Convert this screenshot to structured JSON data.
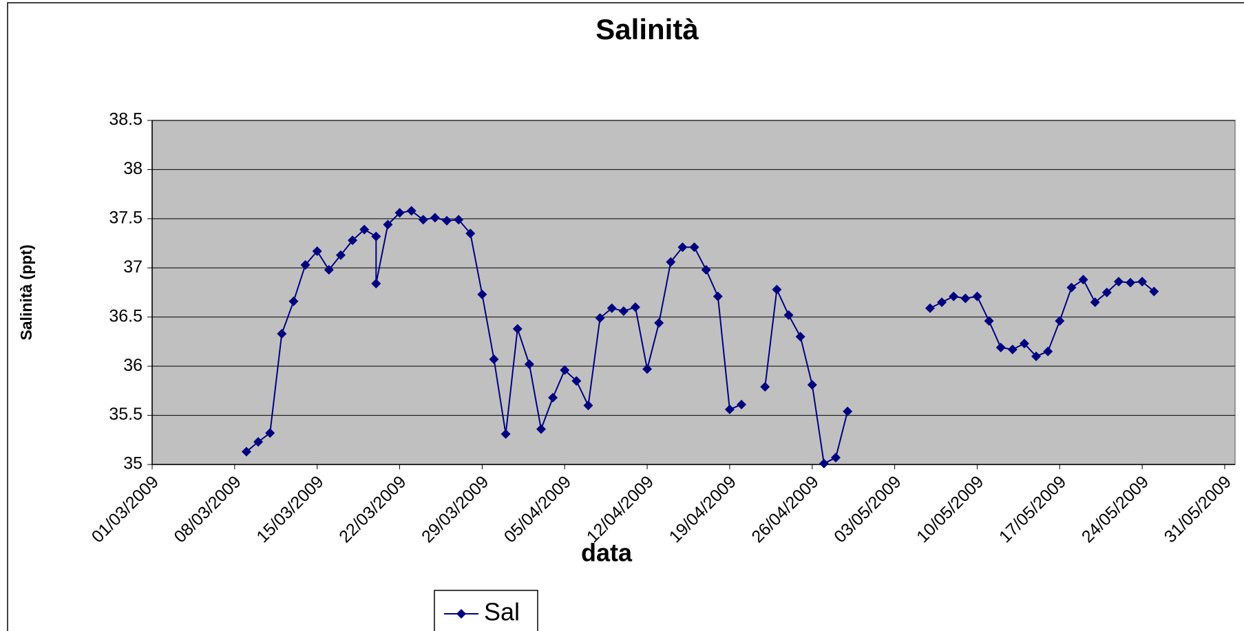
{
  "chart_data": {
    "type": "line",
    "title": "Salinità",
    "x_label": "data",
    "y_label": "Salinità (ppt)",
    "x": [
      "09/03/2009",
      "10/03/2009",
      "11/03/2009",
      "12/03/2009",
      "13/03/2009",
      "14/03/2009",
      "15/03/2009",
      "16/03/2009",
      "17/03/2009",
      "18/03/2009",
      "19/03/2009",
      "20/03/2009",
      "20/03/2009",
      "21/03/2009",
      "22/03/2009",
      "23/03/2009",
      "24/03/2009",
      "25/03/2009",
      "26/03/2009",
      "27/03/2009",
      "28/03/2009",
      "29/03/2009",
      "30/03/2009",
      "31/03/2009",
      "01/04/2009",
      "02/04/2009",
      "03/04/2009",
      "04/04/2009",
      "05/04/2009",
      "06/04/2009",
      "07/04/2009",
      "08/04/2009",
      "09/04/2009",
      "10/04/2009",
      "11/04/2009",
      "12/04/2009",
      "13/04/2009",
      "14/04/2009",
      "15/04/2009",
      "16/04/2009",
      "17/04/2009",
      "18/04/2009",
      "19/04/2009",
      "20/04/2009",
      "21/04/2009",
      "22/04/2009",
      "23/04/2009",
      "24/04/2009",
      "25/04/2009",
      "26/04/2009",
      "27/04/2009",
      "28/04/2009",
      "29/04/2009",
      "30/04/2009",
      "06/05/2009",
      "07/05/2009",
      "08/05/2009",
      "09/05/2009",
      "10/05/2009",
      "11/05/2009",
      "12/05/2009",
      "13/05/2009",
      "14/05/2009",
      "15/05/2009",
      "16/05/2009",
      "17/05/2009",
      "18/05/2009",
      "19/05/2009",
      "20/05/2009",
      "21/05/2009",
      "22/05/2009",
      "23/05/2009",
      "24/05/2009",
      "25/05/2009"
    ],
    "series": [
      {
        "name": "Sal",
        "color": "#000080",
        "values": [
          35.13,
          35.23,
          35.32,
          36.33,
          36.66,
          37.03,
          37.17,
          36.98,
          37.13,
          37.28,
          37.39,
          37.32,
          36.84,
          37.44,
          37.56,
          37.58,
          37.49,
          37.51,
          37.48,
          37.49,
          37.35,
          36.73,
          36.07,
          35.31,
          36.38,
          36.02,
          35.36,
          35.68,
          35.96,
          35.85,
          35.6,
          36.49,
          36.59,
          36.56,
          36.6,
          35.97,
          36.44,
          37.06,
          37.21,
          37.21,
          36.98,
          36.71,
          35.56,
          35.61,
          null,
          35.79,
          36.78,
          36.52,
          36.3,
          35.81,
          35.01,
          35.07,
          35.54,
          null,
          36.59,
          36.65,
          36.71,
          36.69,
          36.71,
          36.46,
          36.19,
          36.17,
          36.23,
          36.1,
          36.15,
          36.46,
          36.8,
          36.88,
          36.65,
          36.75,
          36.86,
          36.85,
          36.86,
          36.76
        ]
      }
    ],
    "xlim": [
      "01/03/2009",
      "31/05/2009"
    ],
    "xticks": [
      "01/03/2009",
      "08/03/2009",
      "15/03/2009",
      "22/03/2009",
      "29/03/2009",
      "05/04/2009",
      "12/04/2009",
      "19/04/2009",
      "26/04/2009",
      "03/05/2009",
      "10/05/2009",
      "17/05/2009",
      "24/05/2009",
      "31/05/2009"
    ],
    "ylim": [
      35,
      38.5
    ],
    "yticks": [
      35,
      35.5,
      36,
      36.5,
      37,
      37.5,
      38,
      38.5
    ],
    "grid": true,
    "plot_background": "#c0c0c0",
    "legend": "bottom"
  }
}
